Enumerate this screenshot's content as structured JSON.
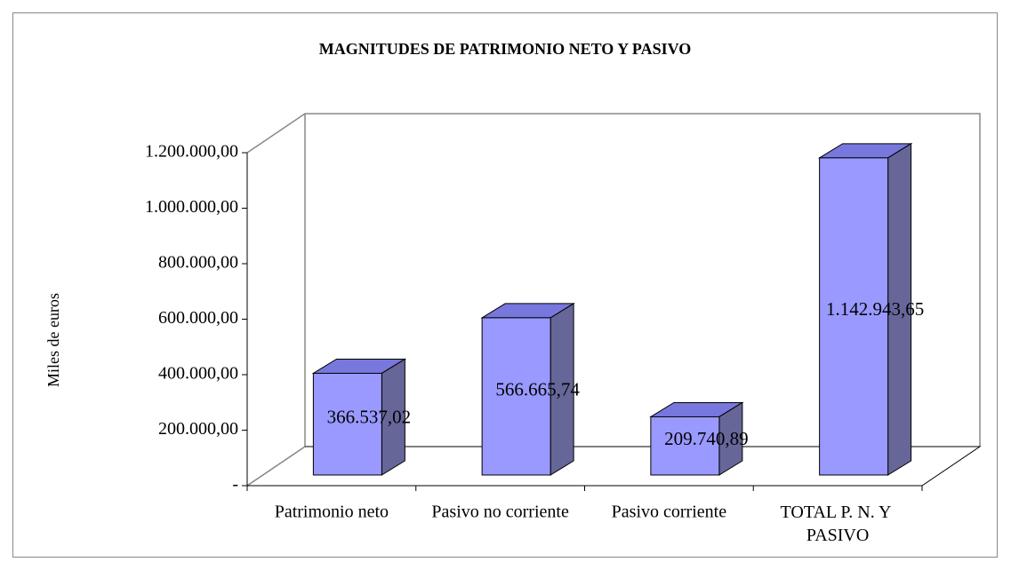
{
  "chart_data": {
    "type": "bar3d",
    "title": "MAGNITUDES DE PATRIMONIO NETO Y PASIVO",
    "y_label": "Miles de euros",
    "categories": [
      "Patrimonio neto",
      "Pasivo no corriente",
      "Pasivo corriente",
      "TOTAL P. N. Y PASIVO"
    ],
    "values": [
      366537.02,
      566665.74,
      209740.89,
      1142943.65
    ],
    "value_labels": [
      "366.537,02",
      "566.665,74",
      "209.740,89",
      "1.142.943,65"
    ],
    "color": "#9999ff",
    "ylim": [
      0,
      1200000
    ],
    "yticks": [
      {
        "value": 0,
        "label": "-"
      },
      {
        "value": 200000,
        "label": "200.000,00"
      },
      {
        "value": 400000,
        "label": "400.000,00"
      },
      {
        "value": 600000,
        "label": "600.000,00"
      },
      {
        "value": 800000,
        "label": "800.000,00"
      },
      {
        "value": 1000000,
        "label": "1.000.000,00"
      },
      {
        "value": 1200000,
        "label": "1.200.000,00"
      }
    ]
  }
}
